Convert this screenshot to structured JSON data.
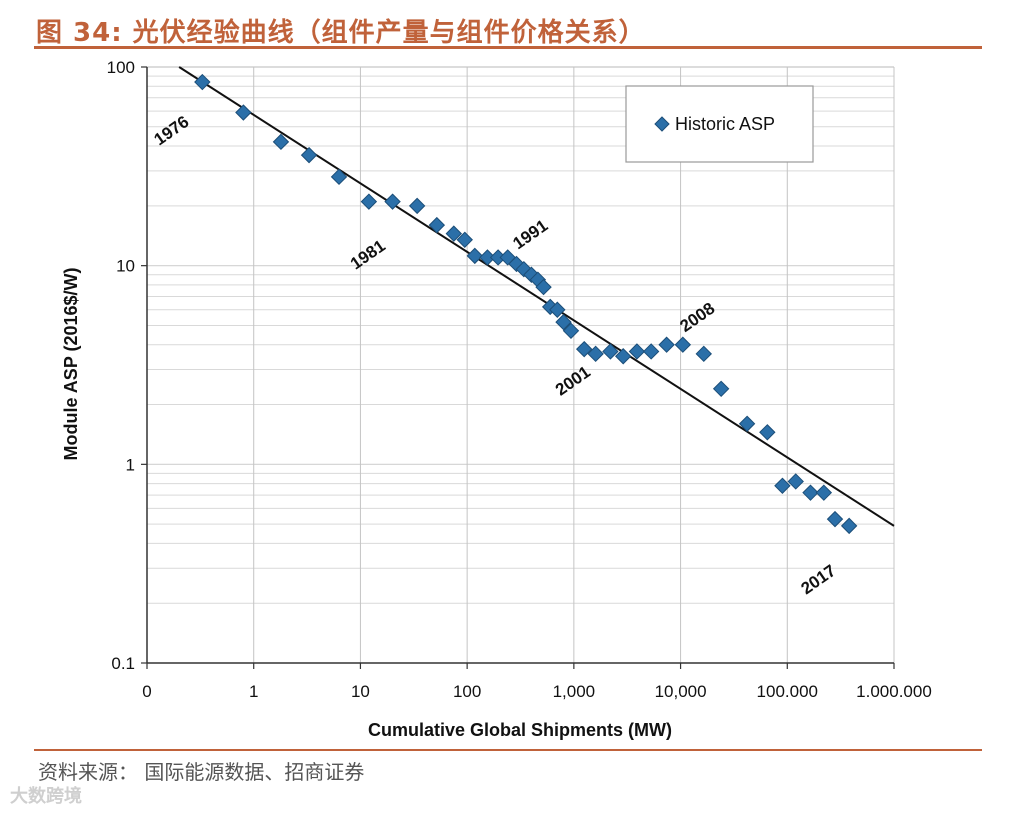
{
  "header": {
    "title": "图 34:  光伏经验曲线（组件产量与组件价格关系）"
  },
  "footer": {
    "source": "资料来源：  国际能源数据、招商证券",
    "watermark": "大数跨境"
  },
  "chart_data": {
    "type": "scatter",
    "xlabel": "Cumulative Global Shipments (MW)",
    "ylabel": "Module ASP (2016$/W)",
    "x_scale": "log",
    "y_scale": "log",
    "xlim": [
      0.1,
      1000000
    ],
    "ylim": [
      0.1,
      100
    ],
    "x_tick_labels": [
      "0",
      "1",
      "10",
      "100",
      "1,000",
      "10,000",
      "100.000",
      "1.000.000"
    ],
    "y_tick_labels": [
      "0.1",
      "1",
      "10",
      "100"
    ],
    "grid": true,
    "legend": {
      "position": "top-right",
      "entries": [
        "Historic ASP"
      ]
    },
    "series": [
      {
        "name": "Historic ASP",
        "color": "#2b6fa8",
        "marker": "diamond",
        "points": [
          [
            0.33,
            84
          ],
          [
            0.8,
            59
          ],
          [
            1.8,
            42
          ],
          [
            3.3,
            36
          ],
          [
            6.3,
            28
          ],
          [
            12,
            21
          ],
          [
            20,
            21
          ],
          [
            34,
            20
          ],
          [
            52,
            16
          ],
          [
            75,
            14.5
          ],
          [
            95,
            13.5
          ],
          [
            118,
            11.2
          ],
          [
            155,
            11
          ],
          [
            195,
            11
          ],
          [
            240,
            11
          ],
          [
            290,
            10.2
          ],
          [
            340,
            9.6
          ],
          [
            400,
            9
          ],
          [
            460,
            8.5
          ],
          [
            520,
            7.8
          ],
          [
            600,
            6.2
          ],
          [
            700,
            6
          ],
          [
            800,
            5.2
          ],
          [
            940,
            4.7
          ],
          [
            1250,
            3.8
          ],
          [
            1600,
            3.6
          ],
          [
            2200,
            3.7
          ],
          [
            2900,
            3.5
          ],
          [
            3900,
            3.7
          ],
          [
            5300,
            3.7
          ],
          [
            7400,
            4
          ],
          [
            10500,
            4
          ],
          [
            16500,
            3.6
          ],
          [
            24000,
            2.4
          ],
          [
            42000,
            1.6
          ],
          [
            65000,
            1.45
          ],
          [
            90000,
            0.78
          ],
          [
            120000,
            0.82
          ],
          [
            165000,
            0.72
          ],
          [
            220000,
            0.72
          ],
          [
            280000,
            0.53
          ],
          [
            380000,
            0.49
          ]
        ]
      }
    ],
    "trend_line": {
      "from": [
        0.2,
        100
      ],
      "to": [
        1000000,
        0.49
      ],
      "color": "#111111"
    },
    "annotations": [
      {
        "text": "1976",
        "x": 0.13,
        "y": 40
      },
      {
        "text": "1981",
        "x": 9,
        "y": 9.5
      },
      {
        "text": "1991",
        "x": 300,
        "y": 12
      },
      {
        "text": "2001",
        "x": 750,
        "y": 2.2
      },
      {
        "text": "2008",
        "x": 11000,
        "y": 4.6
      },
      {
        "text": "2017",
        "x": 150000,
        "y": 0.22
      }
    ]
  }
}
